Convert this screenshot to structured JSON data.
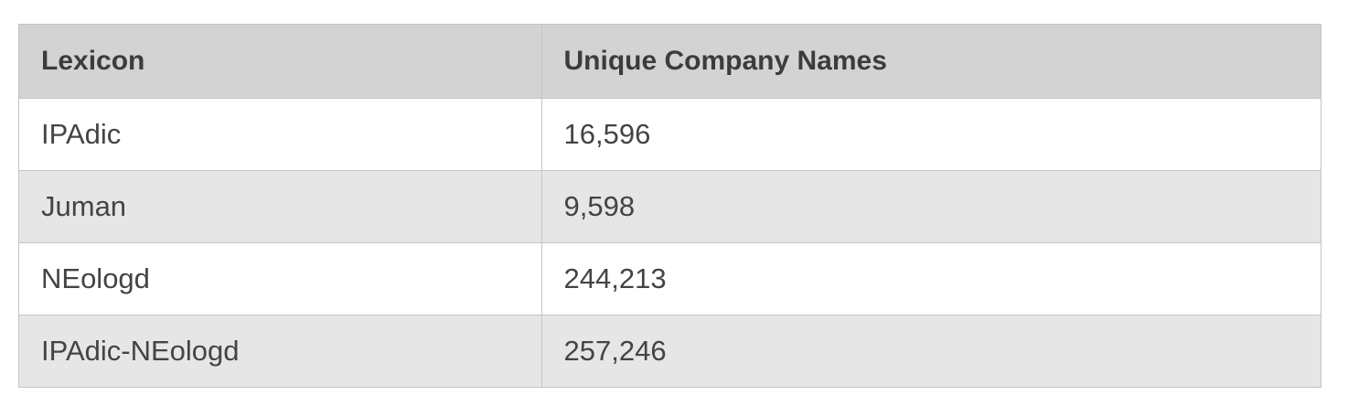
{
  "table": {
    "headers": [
      "Lexicon",
      "Unique Company Names"
    ],
    "rows": [
      [
        "IPAdic",
        "16,596"
      ],
      [
        "Juman",
        "9,598"
      ],
      [
        "NEologd",
        "244,213"
      ],
      [
        "IPAdic-NEologd",
        "257,246"
      ]
    ]
  },
  "colors": {
    "header_background": "#d3d3d3",
    "row_alt_background": "#e6e6e6",
    "border": "#c6c6c6",
    "text": "#3a3a3a"
  }
}
